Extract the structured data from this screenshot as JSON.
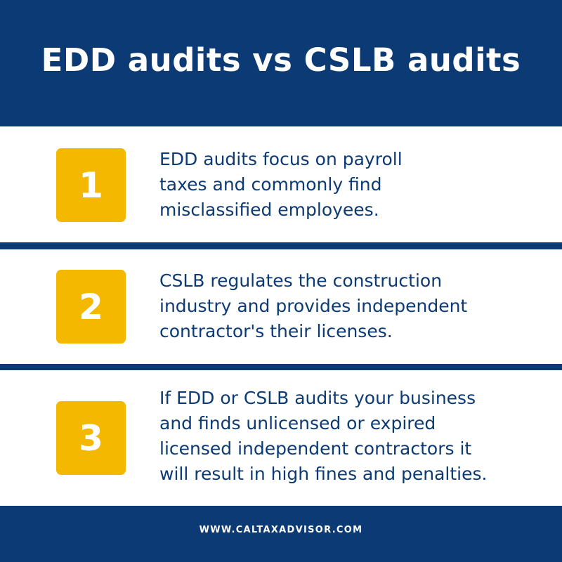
{
  "header": {
    "title": "EDD audits vs CSLB audits"
  },
  "items": [
    {
      "number": "1",
      "text": "EDD audits focus on payroll\ntaxes and commonly find\nmisclassified employees."
    },
    {
      "number": "2",
      "text": "CSLB regulates the construction\nindustry and provides independent\ncontractor's their licenses."
    },
    {
      "number": "3",
      "text": "If EDD or CSLB audits your business\nand finds unlicensed or expired\nlicensed independent contractors it\nwill result in high fines and penalties."
    }
  ],
  "footer": {
    "url": "WWW.CALTAXADVISOR.COM"
  },
  "colors": {
    "navy": "#0b3a75",
    "badge_yellow": "#f5b800",
    "panel_white": "#ffffff"
  }
}
